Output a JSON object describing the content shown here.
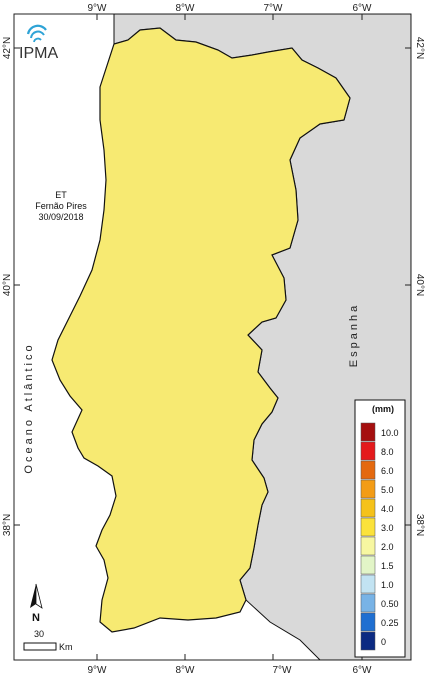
{
  "logo": {
    "text": "IPMA"
  },
  "info": {
    "line1": "ET",
    "line2": "Fernão Pires",
    "line3": "30/09/2018"
  },
  "axes": {
    "lon_top": [
      "9°W",
      "8°W",
      "7°W",
      "6°W"
    ],
    "lon_bottom": [
      "9°W",
      "8°W",
      "7°W",
      "6°W"
    ],
    "lat_left": [
      "42°N",
      "40°N",
      "38°N"
    ],
    "lat_right": [
      "42°N",
      "40°N",
      "38°N"
    ]
  },
  "labels": {
    "ocean": "Oceano Atlântico",
    "spain": "Espanha"
  },
  "legend": {
    "unit": "(mm)",
    "classes": [
      {
        "label": "10.0",
        "color": "#a50f0f"
      },
      {
        "label": "8.0",
        "color": "#e41a1c"
      },
      {
        "label": "6.0",
        "color": "#e4690f"
      },
      {
        "label": "5.0",
        "color": "#f39c16"
      },
      {
        "label": "4.0",
        "color": "#f5c21a"
      },
      {
        "label": "3.0",
        "color": "#fbe23b"
      },
      {
        "label": "2.0",
        "color": "#f7f7a1"
      },
      {
        "label": "1.5",
        "color": "#e2f5c7"
      },
      {
        "label": "1.0",
        "color": "#c2e3f2"
      },
      {
        "label": "0.50",
        "color": "#78b3e6"
      },
      {
        "label": "0.25",
        "color": "#1f6fd1"
      },
      {
        "label": "0",
        "color": "#0b2a82"
      }
    ]
  },
  "scale": {
    "value": "30",
    "unit": "Km",
    "north": "N"
  }
}
